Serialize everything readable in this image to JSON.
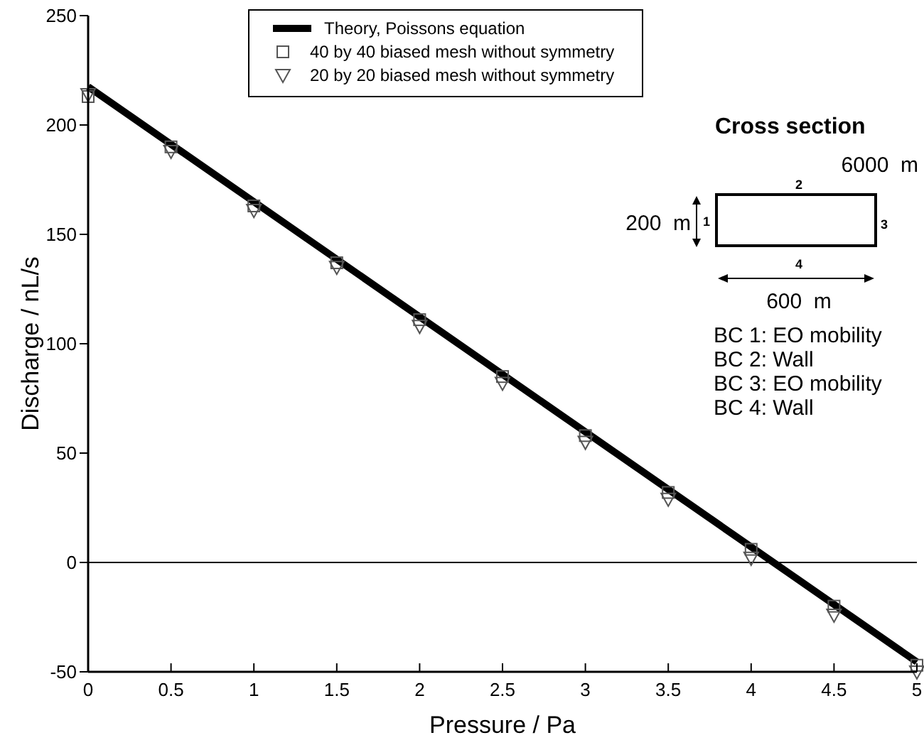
{
  "chart_data": {
    "type": "line",
    "xlabel": "Pressure / Pa",
    "ylabel": "Discharge / nL/s",
    "xlim": [
      0,
      5
    ],
    "ylim": [
      -50,
      250
    ],
    "xticks": [
      0,
      0.5,
      1,
      1.5,
      2,
      2.5,
      3,
      3.5,
      4,
      4.5,
      5
    ],
    "yticks": [
      -50,
      0,
      50,
      100,
      150,
      200,
      250
    ],
    "grid": false,
    "legend": "top",
    "series": [
      {
        "name": "Theory, Poissons equation",
        "color": "#000000",
        "marker": "none",
        "line_style": "solid",
        "x": [
          0,
          5
        ],
        "values": [
          217.5,
          -45.5
        ]
      },
      {
        "name": "40 by 40 biased mesh without symmetry",
        "type": "scatter",
        "color": "#555555",
        "marker": "square",
        "x": [
          0,
          0.5,
          1,
          1.5,
          2,
          2.5,
          3,
          3.5,
          4,
          4.5,
          5
        ],
        "values": [
          213,
          190,
          163,
          137,
          111,
          85,
          58,
          32,
          6,
          -20,
          -47
        ]
      },
      {
        "name": "20 by 20 biased mesh without symmetry",
        "type": "scatter",
        "color": "#555555",
        "marker": "triangle",
        "x": [
          0,
          0.5,
          1,
          1.5,
          2,
          2.5,
          3,
          3.5,
          4,
          4.5,
          5
        ],
        "values": [
          214,
          188,
          161,
          135,
          108,
          82,
          55,
          29,
          2,
          -24,
          -50
        ]
      }
    ],
    "ref_lines": [
      {
        "axis": "y",
        "value": 0,
        "color": "#000000"
      }
    ],
    "annotations": [
      "Cross section",
      "6000  m",
      "2",
      "200  m",
      "1",
      "3",
      "4",
      "600  m",
      "BC 1: EO mobility",
      "BC 2: Wall",
      "BC 3: EO mobility",
      "BC 4: Wall"
    ]
  }
}
